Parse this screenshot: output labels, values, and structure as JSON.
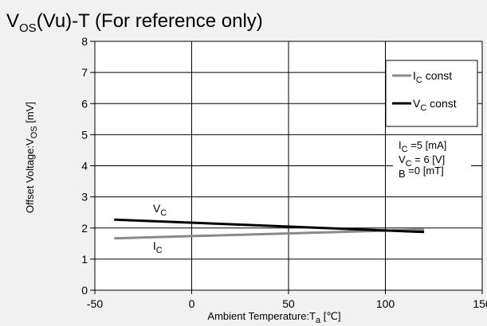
{
  "chart_data": {
    "type": "line",
    "title": {
      "main": "V",
      "sub": "OS",
      "rest": "(Vu)-T (For reference only)"
    },
    "xlabel": {
      "pre": "Ambient Temperature:T",
      "sub": "a",
      "post": " [℃]"
    },
    "ylabel": {
      "pre": "Offset Voltage:V",
      "sub": "OS",
      "post": " [mV]"
    },
    "xlim": [
      -50,
      150
    ],
    "ylim": [
      0,
      8
    ],
    "x_ticks": [
      "-50",
      "0",
      "50",
      "100",
      "150"
    ],
    "y_ticks": [
      "0",
      "1",
      "2",
      "3",
      "4",
      "5",
      "6",
      "7",
      "8"
    ],
    "grid": true,
    "legend_position": "top-right",
    "series": [
      {
        "name": "I_C const",
        "legend": {
          "base": "I",
          "sub": "C",
          "rest": " const"
        },
        "label": {
          "base": "I",
          "sub": "C"
        },
        "label_at": [
          -20,
          1.3
        ],
        "color": "#8a8a8a",
        "x": [
          -40,
          120
        ],
        "y": [
          1.67,
          1.95
        ]
      },
      {
        "name": "V_C const",
        "legend": {
          "base": "V",
          "sub": "C",
          "rest": " const"
        },
        "label": {
          "base": "V",
          "sub": "C"
        },
        "label_at": [
          -20,
          2.5
        ],
        "color": "#000000",
        "x": [
          -40,
          120
        ],
        "y": [
          2.27,
          1.87
        ]
      }
    ],
    "conditions": [
      {
        "base": "I",
        "sub": "C",
        "rest": " =5 [mA]"
      },
      {
        "base": "V",
        "sub": "C",
        "rest": " = 6  [V]"
      },
      {
        "base": "B",
        "sub": "",
        "rest": "  =0 [mT]"
      }
    ]
  }
}
